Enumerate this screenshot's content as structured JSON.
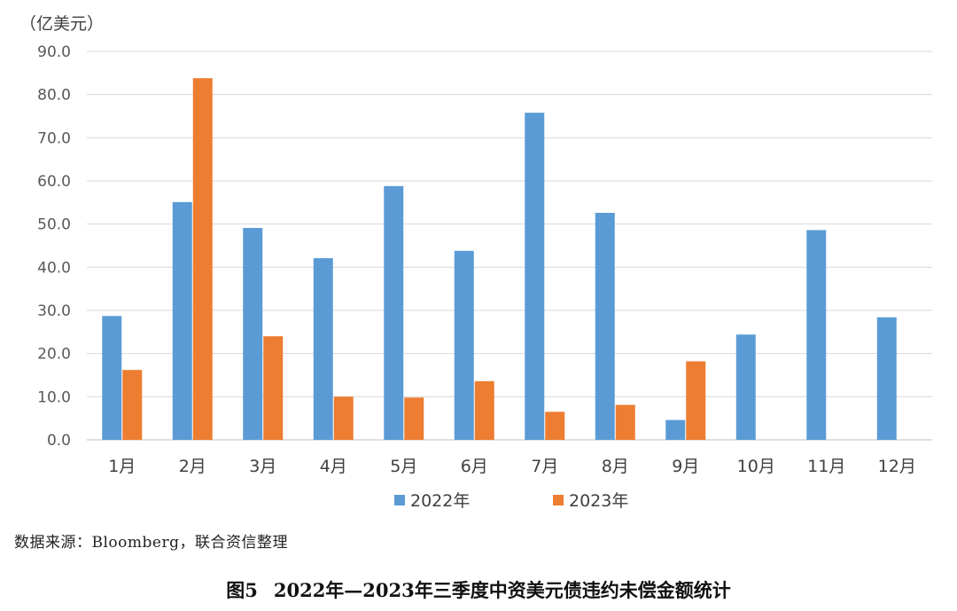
{
  "unit_label": "（亿美元）",
  "source_text": "数据来源：Bloomberg，联合资信整理",
  "caption": {
    "figure_no": "图5",
    "title": "2022年—2023年三季度中资美元债违约未偿金额统计"
  },
  "colors": {
    "series_2022": "#5B9BD5",
    "series_2023": "#ED7D31",
    "grid": "#D9D9D9",
    "axis": "#BFBFBF"
  },
  "chart_data": {
    "type": "bar",
    "categories": [
      "1月",
      "2月",
      "3月",
      "4月",
      "5月",
      "6月",
      "7月",
      "8月",
      "9月",
      "10月",
      "11月",
      "12月"
    ],
    "series": [
      {
        "name": "2022年",
        "values": [
          28.7,
          55.1,
          49.1,
          42.1,
          58.8,
          43.8,
          75.8,
          52.6,
          4.6,
          24.4,
          48.6,
          28.4
        ]
      },
      {
        "name": "2023年",
        "values": [
          16.2,
          83.8,
          24.0,
          10.0,
          9.8,
          13.6,
          6.5,
          8.1,
          18.2,
          null,
          null,
          null
        ]
      }
    ],
    "yticks": [
      "0.0",
      "10.0",
      "20.0",
      "30.0",
      "40.0",
      "50.0",
      "60.0",
      "70.0",
      "80.0",
      "90.0"
    ],
    "ylim": [
      0,
      90
    ],
    "grid": true,
    "legend_position": "bottom"
  }
}
